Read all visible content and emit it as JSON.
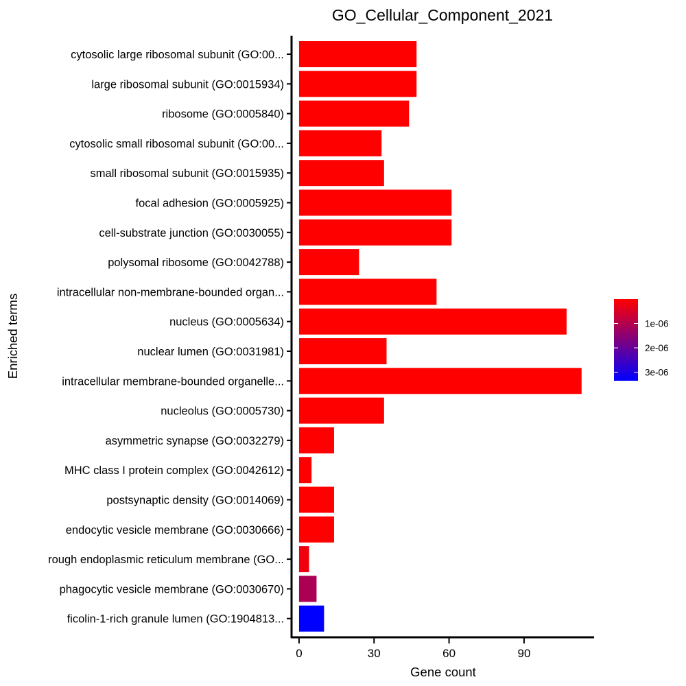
{
  "chart_data": {
    "type": "bar",
    "orientation": "horizontal",
    "title": "GO_Cellular_Component_2021",
    "xlabel": "Gene count",
    "ylabel": "Enriched terms",
    "xlim": [
      -3,
      118
    ],
    "xticks": [
      0,
      30,
      60,
      90
    ],
    "grid": false,
    "legend": "right",
    "categories": [
      "cytosolic large ribosomal subunit (GO:00...",
      "large ribosomal subunit (GO:0015934)",
      "ribosome (GO:0005840)",
      "cytosolic small ribosomal subunit (GO:00...",
      "small ribosomal subunit (GO:0015935)",
      "focal adhesion (GO:0005925)",
      "cell-substrate junction (GO:0030055)",
      "polysomal ribosome (GO:0042788)",
      "intracellular non-membrane-bounded organ...",
      "nucleus (GO:0005634)",
      "nuclear lumen (GO:0031981)",
      "intracellular membrane-bounded organelle...",
      "nucleolus (GO:0005730)",
      "asymmetric synapse (GO:0032279)",
      "MHC class I protein complex (GO:0042612)",
      "postsynaptic density (GO:0014069)",
      "endocytic vesicle membrane (GO:0030666)",
      "rough endoplasmic reticulum membrane (GO...",
      "phagocytic vesicle membrane (GO:0030670)",
      "ficolin-1-rich granule lumen (GO:1904813..."
    ],
    "values": [
      47,
      47,
      44,
      33,
      34,
      61,
      61,
      24,
      55,
      107,
      35,
      113,
      34,
      14,
      5,
      14,
      14,
      4,
      7,
      10
    ],
    "color_values": [
      1e-09,
      1e-09,
      1e-09,
      1e-09,
      1e-09,
      1e-09,
      1e-09,
      1e-09,
      1e-09,
      1e-09,
      1e-09,
      1e-09,
      1e-09,
      1e-09,
      1e-09,
      1e-09,
      1e-09,
      2e-07,
      1.1e-06,
      3.35e-06
    ],
    "colorbar": {
      "min": 0,
      "max": 3.35e-06,
      "low_color": "#ff0000",
      "high_color": "#0000ff",
      "ticks": [
        1e-06,
        2e-06,
        3e-06
      ],
      "tick_labels": [
        "1e-06",
        "2e-06",
        "3e-06"
      ]
    }
  }
}
